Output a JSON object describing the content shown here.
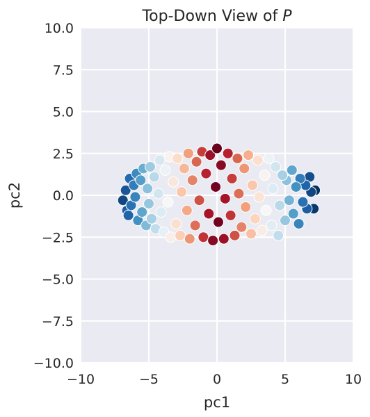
{
  "chart_data": {
    "type": "scatter",
    "title_main": "Top-Down View of ",
    "title_var": "P",
    "xlabel": "pc1",
    "ylabel": "pc2",
    "xlim": [
      -10,
      10
    ],
    "ylim": [
      -10,
      10
    ],
    "xticks": [
      -10,
      -5,
      0,
      5,
      10
    ],
    "yticks": [
      -10,
      -7.5,
      -5,
      -2.5,
      0,
      2.5,
      5,
      7.5,
      10
    ],
    "xtick_labels": [
      "−10",
      "−5",
      "0",
      "5",
      "10"
    ],
    "ytick_labels": [
      "−10.0",
      "−7.5",
      "−5.0",
      "−2.5",
      "0.0",
      "2.5",
      "5.0",
      "7.5",
      "10.0"
    ],
    "grid": true,
    "legend": "none",
    "colormap": "RdBu (diverging, dark red near center, dark blue at outer x)",
    "background_color": "#eaeaf2",
    "point_edge_color": "#ffffff",
    "color_stops": [
      "#67001f",
      "#b2182b",
      "#d6604d",
      "#f4a582",
      "#fddbc7",
      "#f7f7f7",
      "#d1e5f0",
      "#92c5de",
      "#4393c3",
      "#2166ac",
      "#053061"
    ],
    "points": [
      [
        -6.9,
        -0.3
      ],
      [
        -6.7,
        0.3
      ],
      [
        -6.6,
        -0.9
      ],
      [
        -6.5,
        -1.2
      ],
      [
        -6.4,
        1.0
      ],
      [
        -6.3,
        -0.6
      ],
      [
        -6.1,
        0.6
      ],
      [
        -6.0,
        -0.1
      ],
      [
        -5.9,
        1.3
      ],
      [
        -5.8,
        -1.5
      ],
      [
        -5.6,
        0.9
      ],
      [
        -5.5,
        -1.0
      ],
      [
        -5.4,
        1.6
      ],
      [
        -5.2,
        -1.8
      ],
      [
        -5.1,
        0.4
      ],
      [
        -5.0,
        -0.5
      ],
      [
        -4.9,
        1.7
      ],
      [
        -4.8,
        -1.4
      ],
      [
        -4.6,
        1.1
      ],
      [
        -4.5,
        -2.0
      ],
      [
        -4.3,
        0.1
      ],
      [
        -4.2,
        2.1
      ],
      [
        -4.1,
        -1.0
      ],
      [
        -3.9,
        -2.2
      ],
      [
        -3.8,
        1.5
      ],
      [
        -3.6,
        -0.4
      ],
      [
        -3.5,
        2.3
      ],
      [
        -3.4,
        -2.5
      ],
      [
        -3.2,
        0.8
      ],
      [
        -3.0,
        -1.7
      ],
      [
        -2.9,
        2.2
      ],
      [
        -2.7,
        -2.4
      ],
      [
        -2.6,
        0.2
      ],
      [
        -2.4,
        1.6
      ],
      [
        -2.2,
        -0.9
      ],
      [
        -2.1,
        2.5
      ],
      [
        -2.0,
        -2.6
      ],
      [
        -1.8,
        0.9
      ],
      [
        -1.6,
        -1.8
      ],
      [
        -1.5,
        2.0
      ],
      [
        -1.3,
        -0.3
      ],
      [
        -1.1,
        2.6
      ],
      [
        -1.0,
        -2.5
      ],
      [
        -0.8,
        1.3
      ],
      [
        -0.6,
        -1.1
      ],
      [
        -0.5,
        2.4
      ],
      [
        -0.3,
        -2.7
      ],
      [
        -0.1,
        0.5
      ],
      [
        0.0,
        2.8
      ],
      [
        0.1,
        -1.6
      ],
      [
        0.3,
        1.8
      ],
      [
        0.5,
        -2.6
      ],
      [
        0.6,
        -0.2
      ],
      [
        0.8,
        2.5
      ],
      [
        1.0,
        -1.2
      ],
      [
        1.1,
        1.0
      ],
      [
        1.3,
        -2.4
      ],
      [
        1.5,
        2.2
      ],
      [
        1.6,
        0.1
      ],
      [
        1.8,
        -1.9
      ],
      [
        2.0,
        1.6
      ],
      [
        2.1,
        -0.7
      ],
      [
        2.3,
        2.4
      ],
      [
        2.5,
        -2.3
      ],
      [
        2.6,
        0.6
      ],
      [
        2.8,
        -1.4
      ],
      [
        3.0,
        2.1
      ],
      [
        3.1,
        -0.1
      ],
      [
        3.3,
        -2.1
      ],
      [
        3.5,
        1.2
      ],
      [
        3.6,
        -0.9
      ],
      [
        3.8,
        2.2
      ],
      [
        4.0,
        -1.8
      ],
      [
        4.1,
        0.4
      ],
      [
        4.3,
        1.7
      ],
      [
        4.5,
        -2.4
      ],
      [
        4.6,
        -0.6
      ],
      [
        4.8,
        1.2
      ],
      [
        5.0,
        -1.5
      ],
      [
        5.1,
        0.9
      ],
      [
        5.3,
        -0.3
      ],
      [
        5.5,
        1.5
      ],
      [
        5.6,
        -1.1
      ],
      [
        5.8,
        0.5
      ],
      [
        6.0,
        -1.7
      ],
      [
        6.1,
        1.0
      ],
      [
        6.3,
        -0.4
      ],
      [
        6.5,
        0.6
      ],
      [
        6.6,
        -0.8
      ],
      [
        6.8,
        1.1
      ],
      [
        6.9,
        0.2
      ],
      [
        7.1,
        -0.8
      ],
      [
        7.2,
        0.3
      ]
    ]
  }
}
